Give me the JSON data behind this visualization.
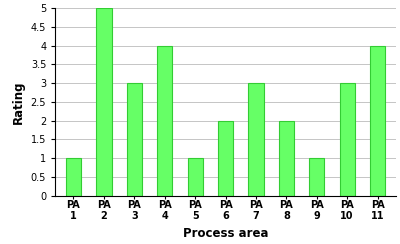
{
  "categories": [
    "PA\n1",
    "PA\n2",
    "PA\n3",
    "PA\n4",
    "PA\n5",
    "PA\n6",
    "PA\n7",
    "PA\n8",
    "PA\n9",
    "PA\n10",
    "PA\n11"
  ],
  "values": [
    1,
    5,
    3,
    4,
    1,
    2,
    3,
    2,
    1,
    3,
    4
  ],
  "bar_color": "#66ff66",
  "bar_edge_color": "#33cc33",
  "title": "",
  "xlabel": "Process area",
  "ylabel": "Rating",
  "ylim": [
    0,
    5
  ],
  "yticks": [
    0,
    0.5,
    1,
    1.5,
    2,
    2.5,
    3,
    3.5,
    4,
    4.5,
    5
  ],
  "background_color": "#ffffff",
  "grid_color": "#bbbbbb",
  "xlabel_fontsize": 8.5,
  "ylabel_fontsize": 8.5,
  "tick_fontsize": 7,
  "bar_width": 0.5
}
